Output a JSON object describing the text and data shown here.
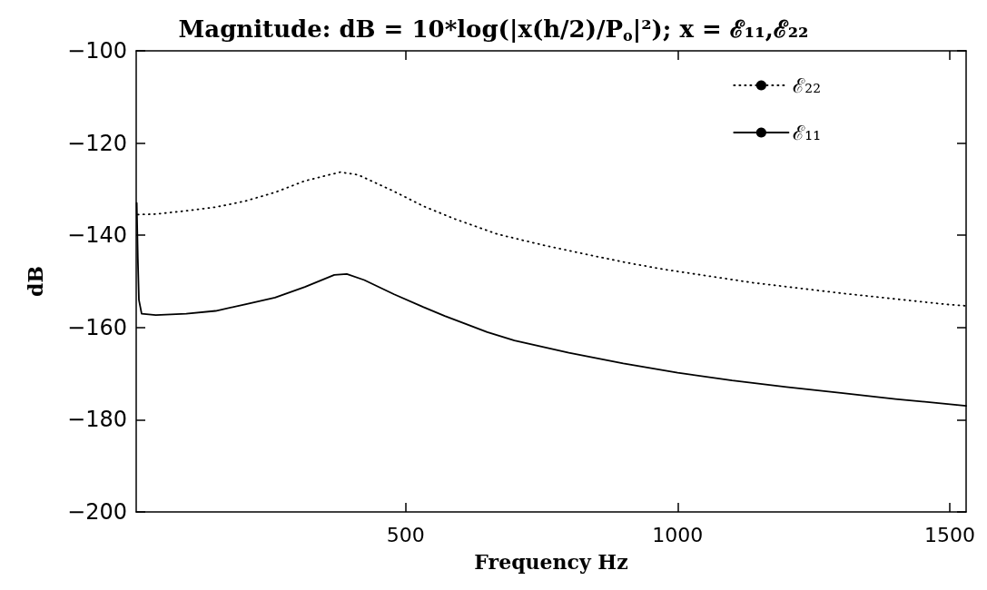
{
  "chart_data": {
    "type": "line",
    "title": "Magnitude: dB = 10*log(|x(h/2)/P$_{o}$|²); x = ℰ₁₁,ℰ₂₂",
    "xlabel": "Frequency Hz",
    "ylabel": "dB",
    "xlim": [
      5,
      1530
    ],
    "xticks": [
      500,
      1000,
      1500
    ],
    "ylim": [
      -200,
      -100
    ],
    "yticks": [
      -200,
      -180,
      -160,
      -140,
      -120,
      -100
    ],
    "grid": false,
    "legend": "top right",
    "marker": "none",
    "series": [
      {
        "name": "ℰ₂₂",
        "color": "#000000",
        "line_style": "dotted",
        "x": [
          8,
          41,
          97,
          151,
          205,
          260,
          315,
          380,
          413,
          479,
          533,
          589,
          670,
          752,
          811,
          900,
          975,
          1139,
          1303,
          1495,
          1530
        ],
        "values": [
          -135.5,
          -135.4,
          -134.7,
          -133.9,
          -132.6,
          -130.7,
          -128.2,
          -126.3,
          -126.9,
          -130.5,
          -133.7,
          -136.4,
          -139.8,
          -142.1,
          -143.6,
          -145.8,
          -147.4,
          -150.3,
          -152.6,
          -155.0,
          -155.3
        ]
      },
      {
        "name": "ℰ₁₁",
        "color": "#000000",
        "line_style": "solid",
        "x": [
          6,
          8,
          10,
          15,
          41,
          97,
          151,
          205,
          260,
          315,
          369,
          392,
          424,
          479,
          533,
          572,
          650,
          700,
          800,
          900,
          1000,
          1100,
          1200,
          1300,
          1400,
          1530
        ],
        "values": [
          -133,
          -145,
          -154,
          -157.0,
          -157.3,
          -157.0,
          -156.4,
          -155.0,
          -153.5,
          -151.2,
          -148.6,
          -148.4,
          -149.7,
          -152.8,
          -155.6,
          -157.5,
          -161.0,
          -162.8,
          -165.5,
          -167.8,
          -169.8,
          -171.5,
          -172.9,
          -174.2,
          -175.5,
          -177.0
        ]
      }
    ]
  }
}
